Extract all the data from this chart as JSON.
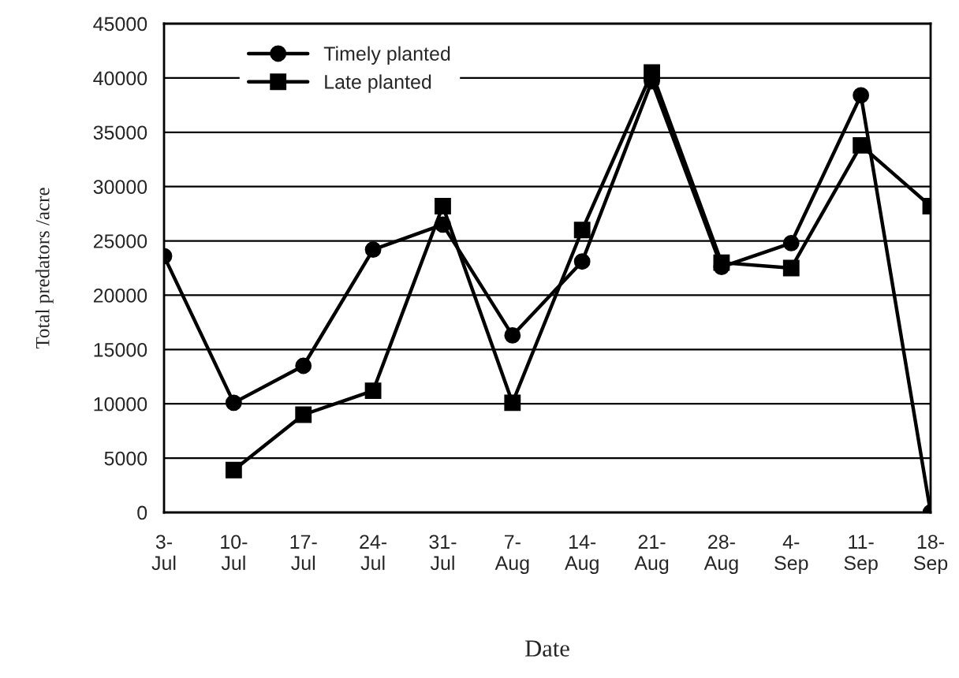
{
  "chart_data": {
    "type": "line",
    "xlabel": "Date",
    "ylabel": "Total predators /acre",
    "categories": [
      "3-Jul",
      "10-Jul",
      "17-Jul",
      "24-Jul",
      "31-Jul",
      "7-Aug",
      "14-Aug",
      "21-Aug",
      "28-Aug",
      "4-Sep",
      "11-Sep",
      "18-Sep"
    ],
    "series": [
      {
        "name": "Timely planted",
        "color": "#000000",
        "marker": "circle",
        "values": [
          23600,
          10100,
          13500,
          24200,
          26500,
          16300,
          23100,
          39700,
          22600,
          24800,
          38400,
          0
        ]
      },
      {
        "name": "Late planted",
        "color": "#000000",
        "marker": "square",
        "values": [
          null,
          3900,
          9000,
          11200,
          28200,
          10100,
          26000,
          40500,
          23000,
          22500,
          33800,
          28200
        ]
      }
    ],
    "ylim": [
      0,
      45000
    ],
    "yticks": [
      0,
      5000,
      10000,
      15000,
      20000,
      25000,
      30000,
      35000,
      40000,
      45000
    ],
    "grid": "y",
    "legend": "top left",
    "line_style": "solid"
  }
}
